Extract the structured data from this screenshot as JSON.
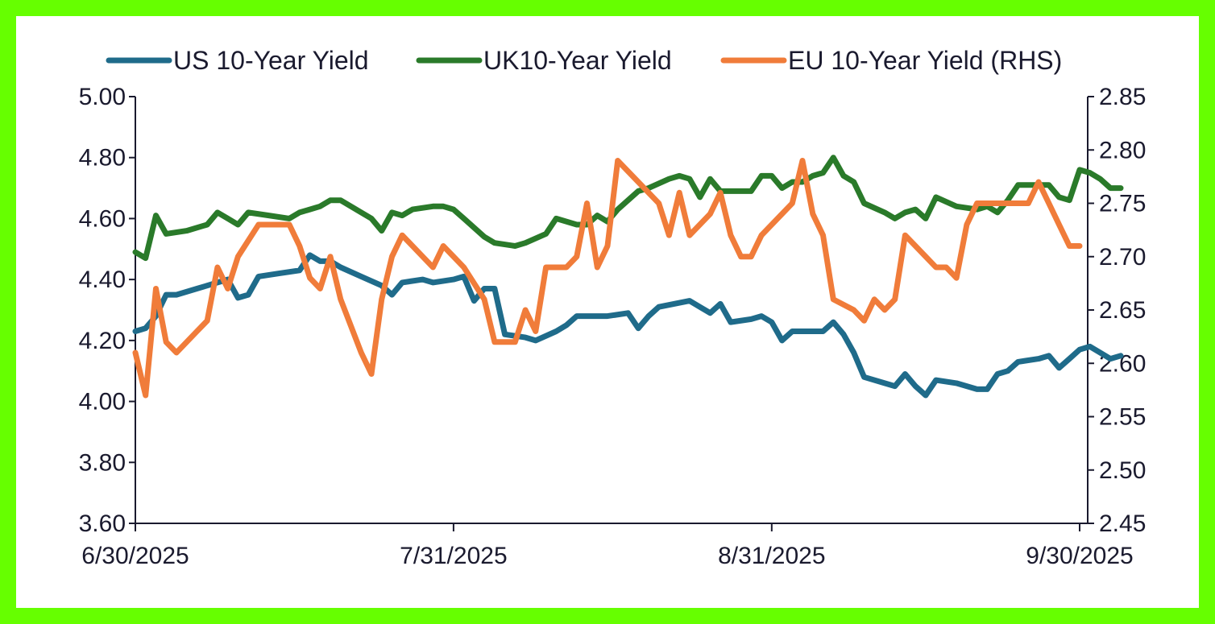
{
  "chart_data": {
    "type": "line",
    "title": "",
    "x_tick_labels": [
      "6/30/2025",
      "7/31/2025",
      "8/31/2025",
      "9/30/2025"
    ],
    "x_tick_days": [
      0,
      31,
      62,
      92
    ],
    "left_axis": {
      "ylim": [
        3.6,
        5.0
      ],
      "ticks": [
        "3.60",
        "3.80",
        "4.00",
        "4.20",
        "4.40",
        "4.60",
        "4.80",
        "5.00"
      ]
    },
    "right_axis": {
      "ylim": [
        2.45,
        2.85
      ],
      "ticks": [
        "2.45",
        "2.50",
        "2.55",
        "2.60",
        "2.65",
        "2.70",
        "2.75",
        "2.80",
        "2.85"
      ]
    },
    "series": [
      {
        "name": "US 10-Year Yield",
        "axis": "left",
        "color": "#1f6b8a",
        "points": [
          [
            0,
            4.23
          ],
          [
            1,
            4.24
          ],
          [
            2,
            4.28
          ],
          [
            3,
            4.35
          ],
          [
            4,
            4.35
          ],
          [
            6,
            4.37
          ],
          [
            8,
            4.39
          ],
          [
            9,
            4.4
          ],
          [
            10,
            4.34
          ],
          [
            11,
            4.35
          ],
          [
            12,
            4.41
          ],
          [
            14,
            4.42
          ],
          [
            16,
            4.43
          ],
          [
            17,
            4.48
          ],
          [
            18,
            4.46
          ],
          [
            19,
            4.46
          ],
          [
            20,
            4.44
          ],
          [
            22,
            4.41
          ],
          [
            24,
            4.38
          ],
          [
            25,
            4.35
          ],
          [
            26,
            4.39
          ],
          [
            28,
            4.4
          ],
          [
            29,
            4.39
          ],
          [
            31,
            4.4
          ],
          [
            32,
            4.41
          ],
          [
            33,
            4.33
          ],
          [
            34,
            4.37
          ],
          [
            35,
            4.37
          ],
          [
            36,
            4.22
          ],
          [
            38,
            4.21
          ],
          [
            39,
            4.2
          ],
          [
            41,
            4.23
          ],
          [
            42,
            4.25
          ],
          [
            43,
            4.28
          ],
          [
            45,
            4.28
          ],
          [
            46,
            4.28
          ],
          [
            48,
            4.29
          ],
          [
            49,
            4.24
          ],
          [
            50,
            4.28
          ],
          [
            51,
            4.31
          ],
          [
            54,
            4.33
          ],
          [
            55,
            4.31
          ],
          [
            56,
            4.29
          ],
          [
            57,
            4.32
          ],
          [
            58,
            4.26
          ],
          [
            60,
            4.27
          ],
          [
            61,
            4.28
          ],
          [
            62,
            4.26
          ],
          [
            63,
            4.2
          ],
          [
            64,
            4.23
          ],
          [
            65,
            4.23
          ],
          [
            66,
            4.23
          ],
          [
            67,
            4.23
          ],
          [
            68,
            4.26
          ],
          [
            69,
            4.22
          ],
          [
            70,
            4.16
          ],
          [
            71,
            4.08
          ],
          [
            73,
            4.06
          ],
          [
            74,
            4.05
          ],
          [
            75,
            4.09
          ],
          [
            76,
            4.05
          ],
          [
            77,
            4.02
          ],
          [
            78,
            4.07
          ],
          [
            80,
            4.06
          ],
          [
            82,
            4.04
          ],
          [
            83,
            4.04
          ],
          [
            84,
            4.09
          ],
          [
            85,
            4.1
          ],
          [
            86,
            4.13
          ],
          [
            88,
            4.14
          ],
          [
            89,
            4.15
          ],
          [
            90,
            4.11
          ],
          [
            91,
            4.14
          ],
          [
            92,
            4.17
          ],
          [
            93,
            4.18
          ],
          [
            94,
            4.16
          ],
          [
            95,
            4.14
          ],
          [
            96,
            4.15
          ]
        ]
      },
      {
        "name": "UK10-Year Yield",
        "axis": "left",
        "color": "#2a7a2a",
        "points": [
          [
            0,
            4.49
          ],
          [
            1,
            4.47
          ],
          [
            2,
            4.61
          ],
          [
            3,
            4.55
          ],
          [
            5,
            4.56
          ],
          [
            7,
            4.58
          ],
          [
            8,
            4.62
          ],
          [
            9,
            4.6
          ],
          [
            10,
            4.58
          ],
          [
            11,
            4.62
          ],
          [
            13,
            4.61
          ],
          [
            15,
            4.6
          ],
          [
            16,
            4.62
          ],
          [
            17,
            4.63
          ],
          [
            18,
            4.64
          ],
          [
            19,
            4.66
          ],
          [
            20,
            4.66
          ],
          [
            22,
            4.62
          ],
          [
            23,
            4.6
          ],
          [
            24,
            4.56
          ],
          [
            25,
            4.62
          ],
          [
            26,
            4.61
          ],
          [
            27,
            4.63
          ],
          [
            29,
            4.64
          ],
          [
            30,
            4.64
          ],
          [
            31,
            4.63
          ],
          [
            32,
            4.6
          ],
          [
            34,
            4.54
          ],
          [
            35,
            4.52
          ],
          [
            37,
            4.51
          ],
          [
            38,
            4.52
          ],
          [
            40,
            4.55
          ],
          [
            41,
            4.6
          ],
          [
            43,
            4.58
          ],
          [
            44,
            4.58
          ],
          [
            45,
            4.61
          ],
          [
            46,
            4.59
          ],
          [
            47,
            4.63
          ],
          [
            49,
            4.69
          ],
          [
            50,
            4.7
          ],
          [
            52,
            4.73
          ],
          [
            53,
            4.74
          ],
          [
            54,
            4.73
          ],
          [
            55,
            4.67
          ],
          [
            56,
            4.73
          ],
          [
            57,
            4.69
          ],
          [
            58,
            4.69
          ],
          [
            60,
            4.69
          ],
          [
            61,
            4.74
          ],
          [
            62,
            4.74
          ],
          [
            63,
            4.7
          ],
          [
            64,
            4.72
          ],
          [
            65,
            4.72
          ],
          [
            66,
            4.74
          ],
          [
            67,
            4.75
          ],
          [
            68,
            4.8
          ],
          [
            69,
            4.74
          ],
          [
            70,
            4.72
          ],
          [
            71,
            4.65
          ],
          [
            73,
            4.62
          ],
          [
            74,
            4.6
          ],
          [
            75,
            4.62
          ],
          [
            76,
            4.63
          ],
          [
            77,
            4.6
          ],
          [
            78,
            4.67
          ],
          [
            80,
            4.64
          ],
          [
            82,
            4.63
          ],
          [
            83,
            4.64
          ],
          [
            84,
            4.62
          ],
          [
            85,
            4.66
          ],
          [
            86,
            4.71
          ],
          [
            88,
            4.71
          ],
          [
            89,
            4.71
          ],
          [
            90,
            4.67
          ],
          [
            91,
            4.66
          ],
          [
            92,
            4.76
          ],
          [
            93,
            4.75
          ],
          [
            94,
            4.73
          ],
          [
            95,
            4.7
          ],
          [
            96,
            4.7
          ]
        ]
      },
      {
        "name": "EU 10-Year Yield (RHS)",
        "axis": "right",
        "color": "#f07c3a",
        "points": [
          [
            0,
            2.61
          ],
          [
            1,
            2.57
          ],
          [
            2,
            2.67
          ],
          [
            3,
            2.62
          ],
          [
            4,
            2.61
          ],
          [
            6,
            2.63
          ],
          [
            7,
            2.64
          ],
          [
            8,
            2.69
          ],
          [
            9,
            2.67
          ],
          [
            10,
            2.7
          ],
          [
            12,
            2.73
          ],
          [
            14,
            2.73
          ],
          [
            15,
            2.73
          ],
          [
            16,
            2.71
          ],
          [
            17,
            2.68
          ],
          [
            18,
            2.67
          ],
          [
            19,
            2.7
          ],
          [
            20,
            2.66
          ],
          [
            22,
            2.61
          ],
          [
            23,
            2.59
          ],
          [
            24,
            2.66
          ],
          [
            25,
            2.7
          ],
          [
            26,
            2.72
          ],
          [
            27,
            2.71
          ],
          [
            29,
            2.69
          ],
          [
            30,
            2.71
          ],
          [
            31,
            2.7
          ],
          [
            32,
            2.69
          ],
          [
            34,
            2.66
          ],
          [
            35,
            2.62
          ],
          [
            37,
            2.62
          ],
          [
            38,
            2.65
          ],
          [
            39,
            2.63
          ],
          [
            40,
            2.69
          ],
          [
            42,
            2.69
          ],
          [
            43,
            2.7
          ],
          [
            44,
            2.75
          ],
          [
            45,
            2.69
          ],
          [
            46,
            2.71
          ],
          [
            47,
            2.79
          ],
          [
            48,
            2.78
          ],
          [
            50,
            2.76
          ],
          [
            51,
            2.75
          ],
          [
            52,
            2.72
          ],
          [
            53,
            2.76
          ],
          [
            54,
            2.72
          ],
          [
            56,
            2.74
          ],
          [
            57,
            2.76
          ],
          [
            58,
            2.72
          ],
          [
            59,
            2.7
          ],
          [
            60,
            2.7
          ],
          [
            61,
            2.72
          ],
          [
            63,
            2.74
          ],
          [
            64,
            2.75
          ],
          [
            65,
            2.79
          ],
          [
            66,
            2.74
          ],
          [
            67,
            2.72
          ],
          [
            68,
            2.66
          ],
          [
            70,
            2.65
          ],
          [
            71,
            2.64
          ],
          [
            72,
            2.66
          ],
          [
            73,
            2.65
          ],
          [
            74,
            2.66
          ],
          [
            75,
            2.72
          ],
          [
            77,
            2.7
          ],
          [
            78,
            2.69
          ],
          [
            79,
            2.69
          ],
          [
            80,
            2.68
          ],
          [
            81,
            2.73
          ],
          [
            82,
            2.75
          ],
          [
            84,
            2.75
          ],
          [
            86,
            2.75
          ],
          [
            87,
            2.75
          ],
          [
            88,
            2.77
          ],
          [
            89,
            2.75
          ],
          [
            90,
            2.73
          ],
          [
            91,
            2.71
          ],
          [
            92,
            2.71
          ]
        ]
      }
    ],
    "x_domain_days": [
      0,
      92
    ],
    "grid": false,
    "legend_position": "top"
  }
}
